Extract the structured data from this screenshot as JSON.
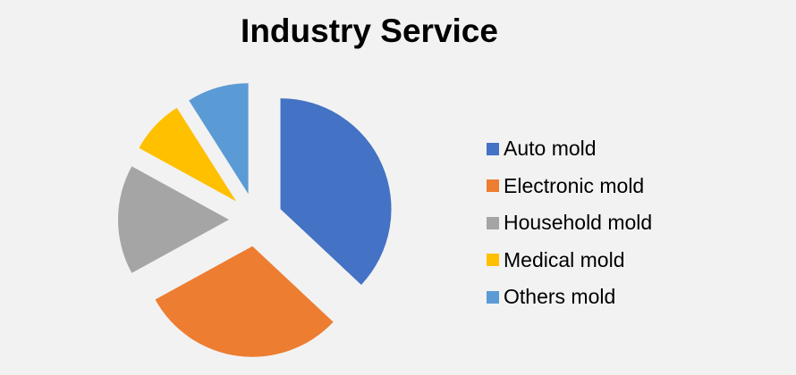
{
  "chart_data": {
    "type": "pie",
    "title": "Industry Service",
    "exploded": true,
    "start_angle": "12 o'clock, clockwise",
    "legend_position": "right",
    "series": [
      {
        "name": "Auto mold",
        "value": 37,
        "color": "#4472c4"
      },
      {
        "name": "Electronic mold",
        "value": 30,
        "color": "#ed7d31"
      },
      {
        "name": "Household mold",
        "value": 16,
        "color": "#a5a5a5"
      },
      {
        "name": "Medical mold",
        "value": 8,
        "color": "#ffc000"
      },
      {
        "name": "Others mold",
        "value": 9,
        "color": "#5b9bd5"
      }
    ]
  }
}
